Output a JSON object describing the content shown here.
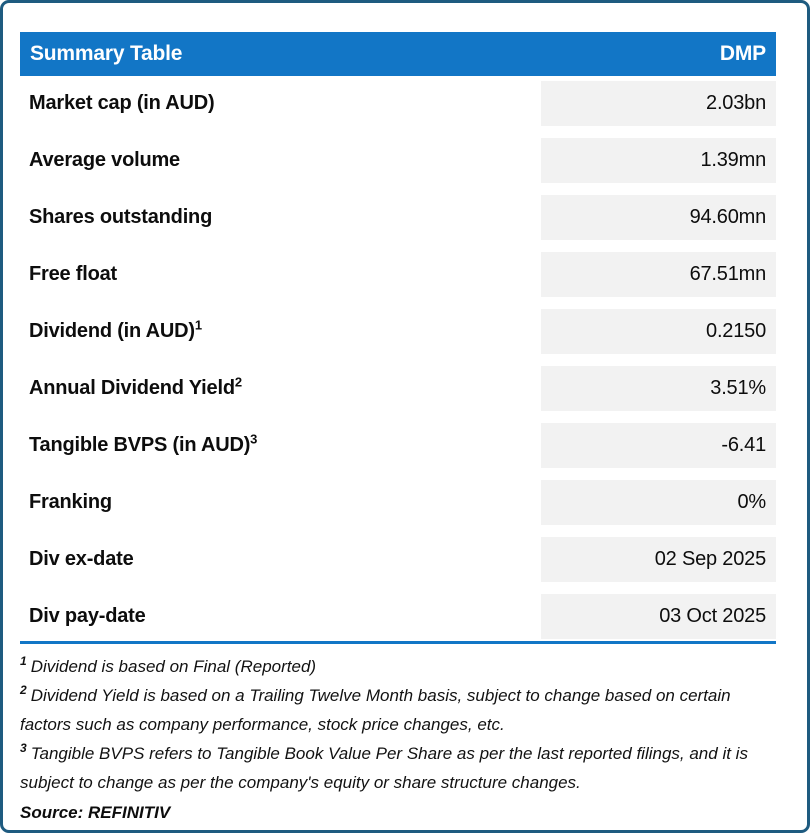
{
  "header": {
    "title": "Summary Table",
    "ticker": "DMP"
  },
  "table": {
    "rows": [
      {
        "label": "Market cap (in AUD)",
        "sup": "",
        "value": "2.03bn"
      },
      {
        "label": "Average volume",
        "sup": "",
        "value": "1.39mn"
      },
      {
        "label": "Shares outstanding",
        "sup": "",
        "value": "94.60mn"
      },
      {
        "label": "Free float",
        "sup": "",
        "value": "67.51mn"
      },
      {
        "label": "Dividend (in AUD)",
        "sup": "1",
        "value": "0.2150"
      },
      {
        "label": "Annual Dividend Yield",
        "sup": "2",
        "value": "3.51%"
      },
      {
        "label": "Tangible BVPS (in AUD)",
        "sup": "3",
        "value": "-6.41"
      },
      {
        "label": "Franking",
        "sup": "",
        "value": "0%"
      },
      {
        "label": "Div ex-date",
        "sup": "",
        "value": "02 Sep 2025"
      },
      {
        "label": "Div pay-date",
        "sup": "",
        "value": "03 Oct 2025"
      }
    ]
  },
  "footnotes": [
    {
      "sup": "1",
      "text": "Dividend is based on Final (Reported)"
    },
    {
      "sup": "2",
      "text": "Dividend Yield is based on a Trailing Twelve Month basis, subject to change based on certain factors such as company performance, stock price changes, etc."
    },
    {
      "sup": "3",
      "text": "Tangible BVPS refers to Tangible Book Value Per Share as per the last reported filings, and it is subject to change as per the company's equity or share structure changes."
    }
  ],
  "source": "Source: REFINITIV",
  "colors": {
    "header_bg": "#1276C6",
    "header_text": "#FFFFFF",
    "value_cell_bg": "#F2F2F2",
    "frame_border": "#1E5B80",
    "divider": "#1276C6",
    "text": "#0D0D0D"
  }
}
